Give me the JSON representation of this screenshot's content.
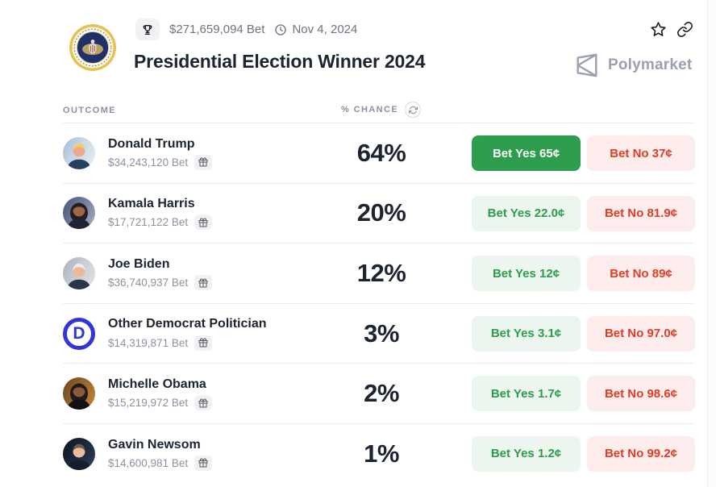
{
  "colors": {
    "yes_green": "#2e9e4e",
    "yes_green_text": "#2d9c4b",
    "yes_light_bg": "#edf5ef",
    "no_red_text": "#de3e27",
    "no_light_bg": "#fcedec",
    "brand_gray": "#9aa1af",
    "democrat_blue": "#3236d6"
  },
  "header": {
    "volume": "$271,659,094 Bet",
    "date": "Nov 4, 2024",
    "title": "Presidential Election Winner 2024",
    "brand": "Polymarket"
  },
  "table": {
    "outcome_label": "OUTCOME",
    "chance_label": "% CHANCE",
    "rows": [
      {
        "name": "Donald Trump",
        "bet": "$34,243,120 Bet",
        "chance": "64%",
        "yes": "Bet Yes 65¢",
        "no": "Bet No 37¢",
        "avatar": "trump",
        "yes_solid": true
      },
      {
        "name": "Kamala Harris",
        "bet": "$17,721,122 Bet",
        "chance": "20%",
        "yes": "Bet Yes 22.0¢",
        "no": "Bet No 81.9¢",
        "avatar": "harris",
        "yes_solid": false
      },
      {
        "name": "Joe Biden",
        "bet": "$36,740,937 Bet",
        "chance": "12%",
        "yes": "Bet Yes 12¢",
        "no": "Bet No 89¢",
        "avatar": "biden",
        "yes_solid": false
      },
      {
        "name": "Other Democrat Politician",
        "bet": "$14,319,871 Bet",
        "chance": "3%",
        "yes": "Bet Yes 3.1¢",
        "no": "Bet No 97.0¢",
        "avatar": "dem",
        "avatar_letter": "D",
        "yes_solid": false
      },
      {
        "name": "Michelle Obama",
        "bet": "$15,219,972 Bet",
        "chance": "2%",
        "yes": "Bet Yes 1.7¢",
        "no": "Bet No 98.6¢",
        "avatar": "obama",
        "yes_solid": false
      },
      {
        "name": "Gavin Newsom",
        "bet": "$14,600,981 Bet",
        "chance": "1%",
        "yes": "Bet Yes 1.2¢",
        "no": "Bet No 99.2¢",
        "avatar": "newsom",
        "yes_solid": false
      }
    ]
  }
}
